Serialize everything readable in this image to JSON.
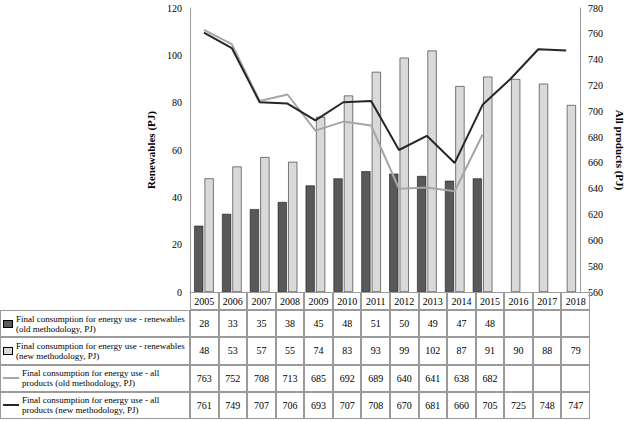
{
  "chart_data": {
    "type": "bar",
    "categories": [
      "2005",
      "2006",
      "2007",
      "2008",
      "2009",
      "2010",
      "2011",
      "2012",
      "2013",
      "2014",
      "2015",
      "2016",
      "2017",
      "2018"
    ],
    "ylabel": "Renewables (PJ)",
    "y2label": "All products (PJ)",
    "ylim": [
      0,
      120
    ],
    "yticks": [
      0,
      20,
      40,
      60,
      80,
      100,
      120
    ],
    "y2lim": [
      560,
      780
    ],
    "y2ticks": [
      560,
      580,
      600,
      620,
      640,
      660,
      680,
      700,
      720,
      740,
      760,
      780
    ],
    "grid": false,
    "series": [
      {
        "name": "Final consumption for energy use - renewables (old methodology, PJ)",
        "type": "bar",
        "color": "#595959",
        "values": [
          28,
          33,
          35,
          38,
          45,
          48,
          51,
          50,
          49,
          47,
          48,
          null,
          null,
          null
        ]
      },
      {
        "name": "Final consumption for energy use - renewables (new methodology, PJ)",
        "type": "bar",
        "color": "#d9d9d9",
        "values": [
          48,
          53,
          57,
          55,
          74,
          83,
          93,
          99,
          102,
          87,
          91,
          90,
          88,
          79
        ]
      },
      {
        "name": "Final consumption for energy use - all products (old methodology, PJ)",
        "type": "line",
        "axis": "y2",
        "color": "#a6a6a6",
        "values": [
          763,
          752,
          708,
          713,
          685,
          692,
          689,
          640,
          641,
          638,
          682,
          null,
          null,
          null
        ]
      },
      {
        "name": "Final consumption for energy use - all products (new methodology, PJ)",
        "type": "line",
        "axis": "y2",
        "color": "#262626",
        "values": [
          761,
          749,
          707,
          706,
          693,
          707,
          708,
          670,
          681,
          660,
          705,
          725,
          748,
          747
        ]
      }
    ]
  }
}
